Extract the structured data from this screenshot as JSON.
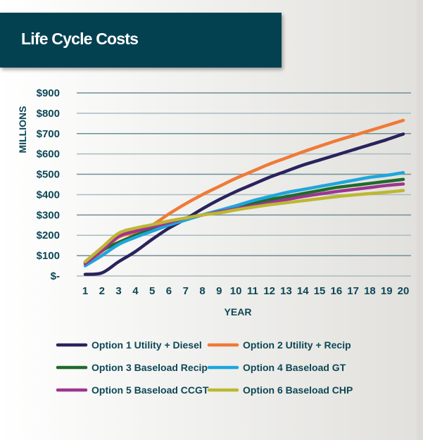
{
  "chart_data": {
    "type": "line",
    "title": "Life Cycle Costs",
    "xlabel": "YEAR",
    "ylabel": "MILLIONS",
    "x": [
      1,
      2,
      3,
      4,
      5,
      6,
      7,
      8,
      9,
      10,
      11,
      12,
      13,
      14,
      15,
      16,
      17,
      18,
      19,
      20
    ],
    "x_tick_labels": [
      "1",
      "2",
      "3",
      "4",
      "5",
      "6",
      "7",
      "8",
      "9",
      "10",
      "11",
      "12",
      "13",
      "14",
      "15",
      "16",
      "17",
      "18",
      "19",
      "20"
    ],
    "ylim": [
      0,
      900
    ],
    "y_ticks": [
      0,
      100,
      200,
      300,
      400,
      500,
      600,
      700,
      800,
      900
    ],
    "y_tick_labels": [
      "$-",
      "$100",
      "$200",
      "$300",
      "$400",
      "$500",
      "$600",
      "$700",
      "$800",
      "$900"
    ],
    "grid": "horizontal",
    "legend_placement": "bottom",
    "series": [
      {
        "name": "Option 1 Utility + Diesel",
        "color": "#29235c",
        "values": [
          8,
          15,
          70,
          120,
          180,
          235,
          280,
          330,
          375,
          415,
          450,
          485,
          515,
          545,
          570,
          595,
          620,
          645,
          670,
          698
        ]
      },
      {
        "name": "Option 2 Utility + Recip",
        "color": "#f07a37",
        "values": [
          65,
          120,
          190,
          215,
          250,
          305,
          355,
          400,
          440,
          480,
          515,
          550,
          580,
          610,
          638,
          665,
          690,
          715,
          740,
          765
        ]
      },
      {
        "name": "Option 3 Baseload Recip",
        "color": "#1f6b2b",
        "values": [
          65,
          125,
          165,
          200,
          230,
          258,
          280,
          300,
          315,
          335,
          355,
          375,
          390,
          405,
          420,
          435,
          445,
          455,
          465,
          475
        ]
      },
      {
        "name": "Option 4 Baseload GT",
        "color": "#1ea6dd",
        "values": [
          50,
          100,
          155,
          190,
          220,
          250,
          275,
          300,
          322,
          345,
          370,
          390,
          410,
          425,
          440,
          455,
          470,
          485,
          495,
          508
        ]
      },
      {
        "name": "Option 5 Baseload CCGT",
        "color": "#9d3590",
        "values": [
          60,
          125,
          195,
          220,
          240,
          262,
          285,
          300,
          315,
          330,
          345,
          360,
          375,
          390,
          403,
          415,
          425,
          435,
          445,
          452
        ]
      },
      {
        "name": "Option 6 Baseload CHP",
        "color": "#bdb733",
        "values": [
          70,
          140,
          210,
          235,
          252,
          270,
          285,
          300,
          310,
          325,
          338,
          350,
          360,
          370,
          380,
          390,
          398,
          405,
          412,
          420
        ]
      }
    ]
  }
}
